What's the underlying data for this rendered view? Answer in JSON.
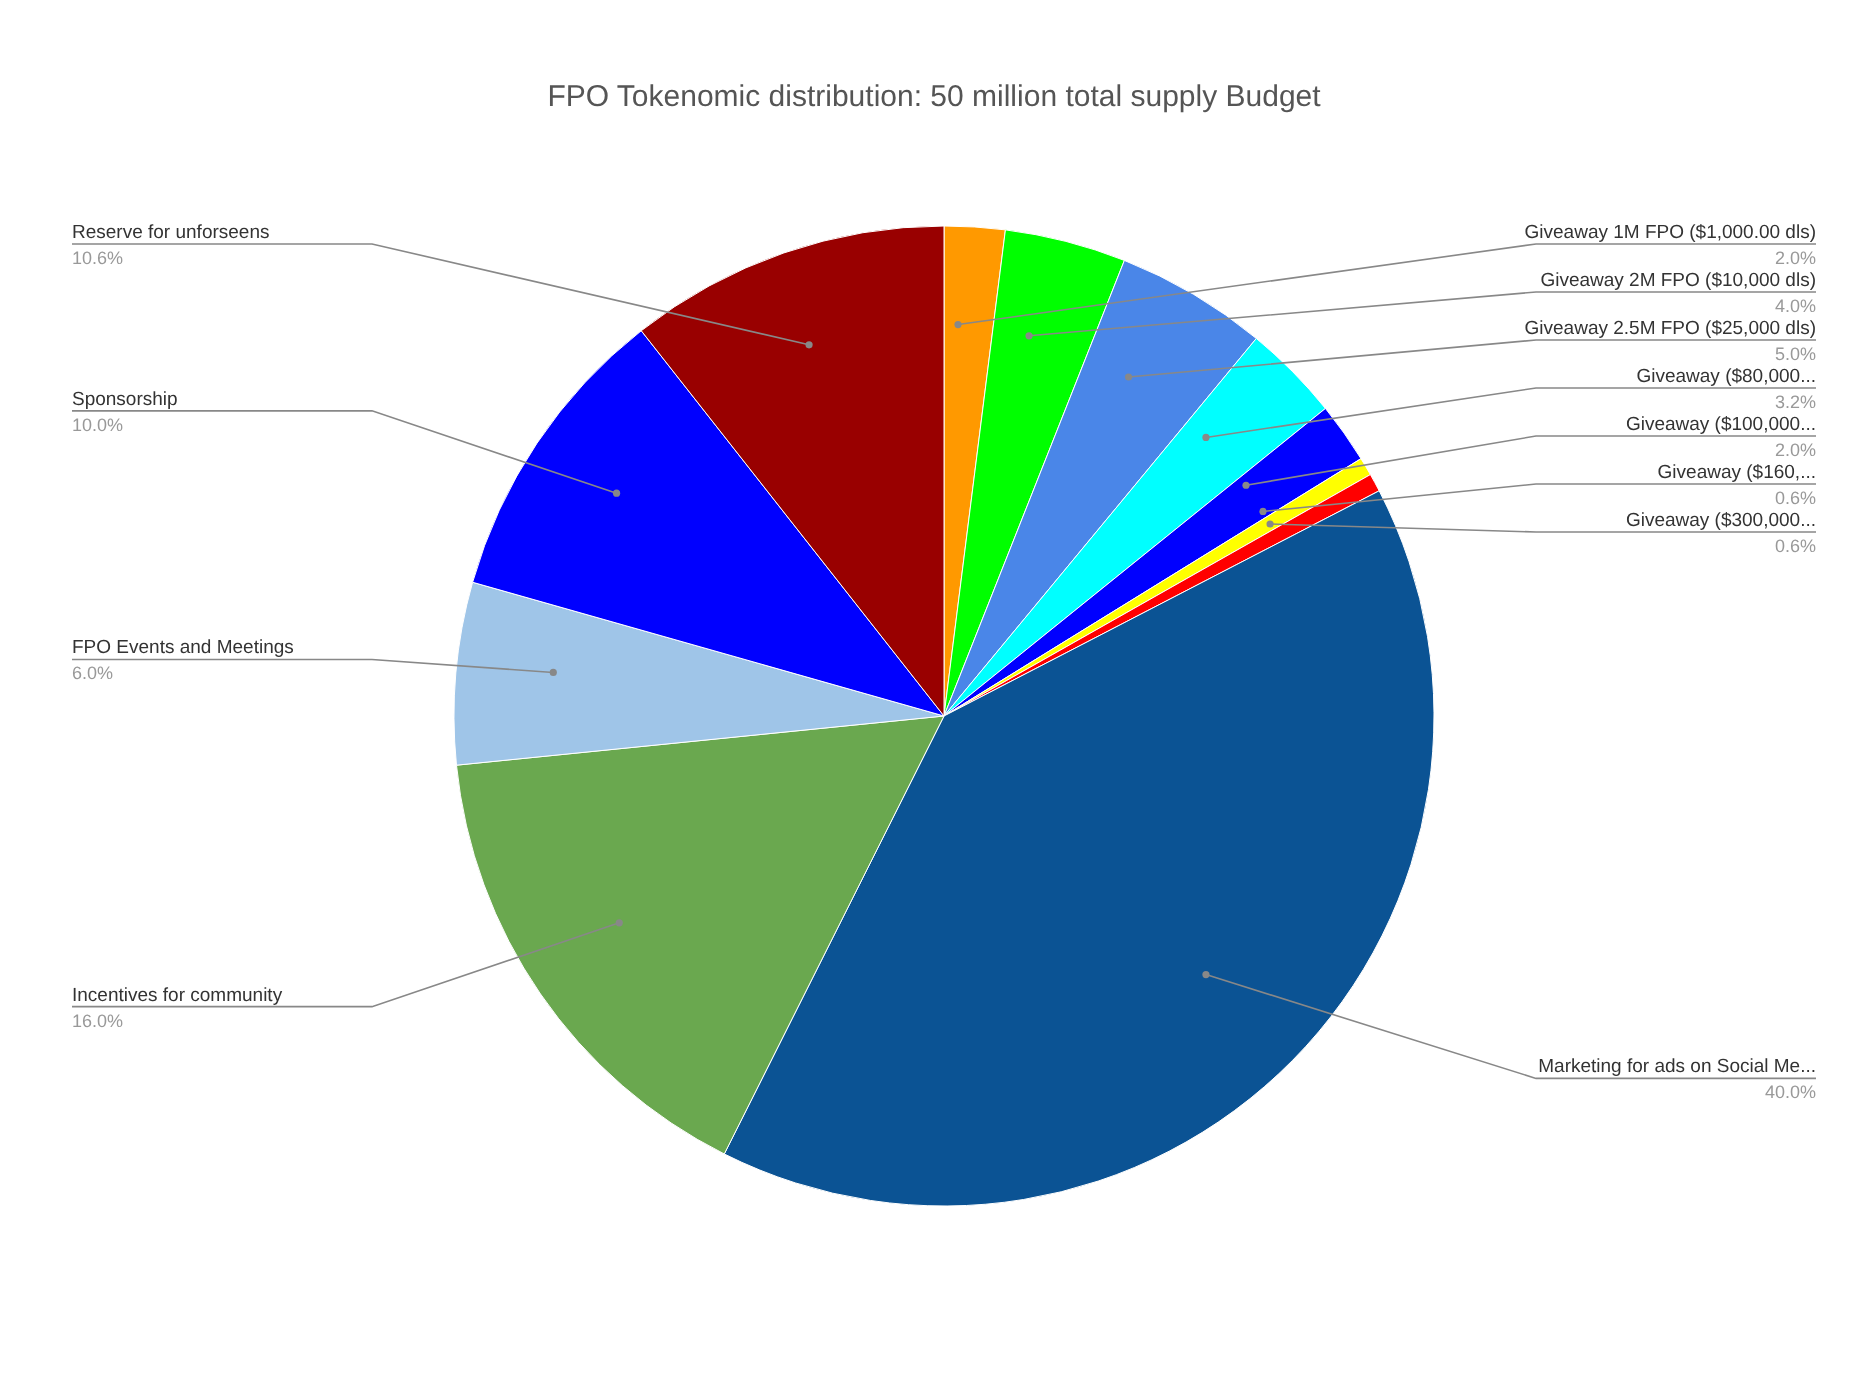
{
  "chart_data": {
    "type": "pie",
    "title": "FPO Tokenomic distribution: 50 million total supply Budget",
    "categories": [
      "Giveaway 1M FPO ($1,000.00 dls)",
      "Giveaway 2M FPO ($10,000 dls)",
      "Giveaway 2.5M FPO ($25,000 dls)",
      "Giveaway ($80,000...",
      "Giveaway ($100,000...",
      "Giveaway ($160,...",
      "Giveaway ($300,000...",
      "Marketing for ads on Social Me...",
      "Incentives for community",
      "FPO Events and Meetings",
      "Sponsorship",
      "Reserve for unforseens"
    ],
    "values": [
      2.0,
      4.0,
      5.0,
      3.2,
      2.0,
      0.6,
      0.6,
      40.0,
      16.0,
      6.0,
      10.0,
      10.6
    ],
    "value_labels": [
      "2.0%",
      "4.0%",
      "5.0%",
      "3.2%",
      "2.0%",
      "0.6%",
      "0.6%",
      "40.0%",
      "16.0%",
      "6.0%",
      "10.0%",
      "10.6%"
    ],
    "colors": [
      "#ff9900",
      "#00ff00",
      "#4a86e8",
      "#00ffff",
      "#0000ff",
      "#ffff00",
      "#ff0000",
      "#0b5394",
      "#6aa84f",
      "#9fc5e8",
      "#0000ff",
      "#990000"
    ]
  }
}
